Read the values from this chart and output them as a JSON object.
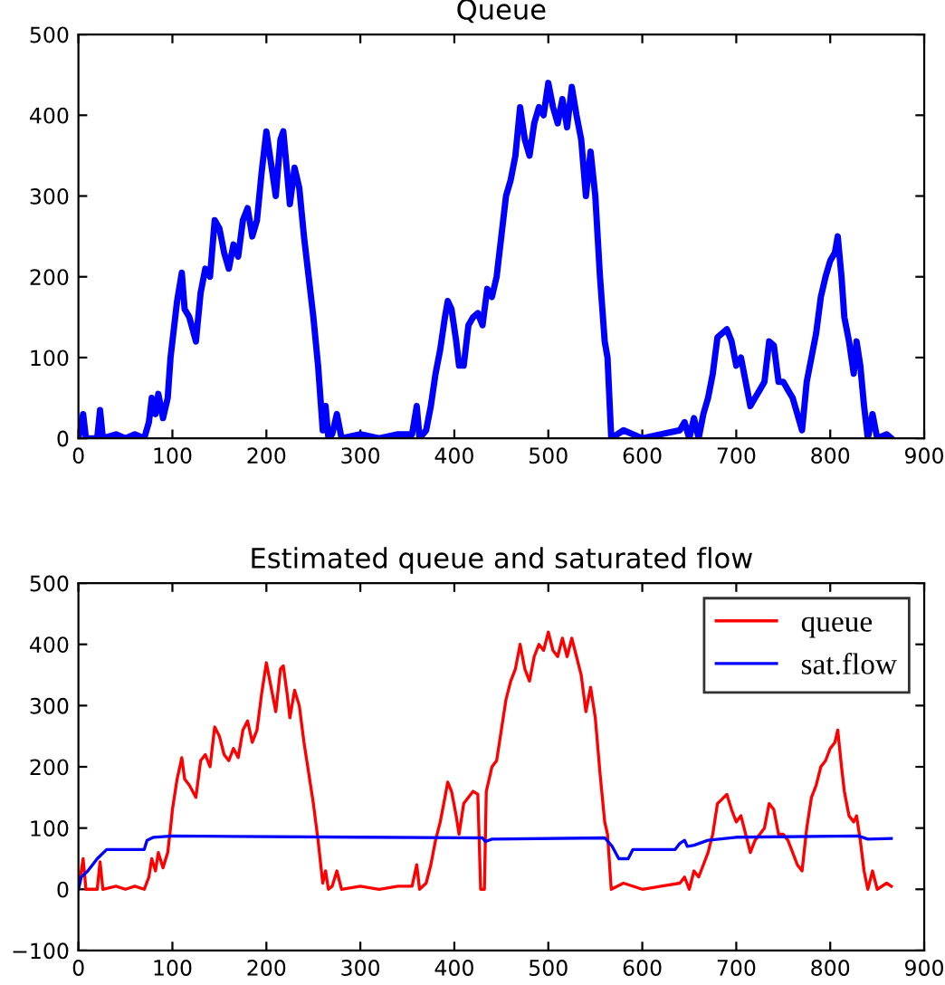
{
  "chart_data": [
    {
      "type": "line",
      "title": "Queue",
      "xlim": [
        0,
        900
      ],
      "xticks": [
        0,
        100,
        200,
        300,
        400,
        500,
        600,
        700,
        800,
        900
      ],
      "ylim": [
        0,
        500
      ],
      "yticks": [
        0,
        100,
        200,
        300,
        400,
        500
      ],
      "grid": false,
      "legend": false,
      "series": [
        {
          "color": "#0000ff",
          "x": [
            0,
            5,
            8,
            20,
            23,
            26,
            40,
            50,
            60,
            70,
            75,
            78,
            82,
            85,
            90,
            95,
            98,
            100,
            105,
            110,
            113,
            118,
            125,
            130,
            135,
            140,
            145,
            150,
            155,
            160,
            165,
            170,
            175,
            180,
            185,
            190,
            195,
            200,
            205,
            210,
            215,
            218,
            222,
            225,
            230,
            235,
            240,
            245,
            250,
            255,
            260,
            263,
            266,
            270,
            275,
            280,
            300,
            320,
            340,
            355,
            360,
            363,
            370,
            375,
            380,
            385,
            390,
            393,
            397,
            402,
            405,
            410,
            415,
            420,
            425,
            430,
            435,
            440,
            445,
            450,
            455,
            460,
            465,
            470,
            475,
            480,
            485,
            490,
            495,
            500,
            505,
            510,
            515,
            520,
            525,
            530,
            535,
            540,
            545,
            550,
            555,
            560,
            563,
            567,
            580,
            600,
            620,
            640,
            645,
            650,
            655,
            660,
            665,
            670,
            675,
            680,
            690,
            695,
            700,
            705,
            710,
            715,
            720,
            725,
            730,
            735,
            740,
            745,
            750,
            755,
            760,
            765,
            770,
            775,
            780,
            785,
            790,
            795,
            800,
            805,
            808,
            812,
            815,
            820,
            825,
            828,
            832,
            836,
            840,
            845,
            850,
            860,
            865
          ],
          "values": [
            0,
            30,
            0,
            0,
            35,
            0,
            5,
            0,
            5,
            0,
            20,
            50,
            30,
            55,
            25,
            50,
            100,
            120,
            170,
            205,
            160,
            150,
            120,
            180,
            210,
            200,
            270,
            260,
            230,
            210,
            240,
            225,
            270,
            285,
            250,
            270,
            330,
            380,
            340,
            300,
            370,
            380,
            330,
            290,
            335,
            310,
            250,
            200,
            150,
            90,
            10,
            40,
            0,
            5,
            30,
            0,
            5,
            0,
            5,
            5,
            40,
            0,
            10,
            40,
            80,
            110,
            150,
            170,
            160,
            120,
            90,
            90,
            140,
            150,
            155,
            140,
            185,
            175,
            200,
            250,
            300,
            320,
            350,
            410,
            370,
            350,
            390,
            410,
            400,
            440,
            410,
            390,
            420,
            385,
            435,
            400,
            370,
            300,
            355,
            300,
            200,
            120,
            100,
            0,
            10,
            0,
            5,
            10,
            20,
            0,
            25,
            0,
            30,
            50,
            80,
            125,
            135,
            120,
            90,
            100,
            70,
            40,
            50,
            60,
            70,
            120,
            115,
            70,
            70,
            60,
            50,
            30,
            10,
            70,
            100,
            130,
            175,
            200,
            220,
            230,
            250,
            200,
            150,
            120,
            80,
            120,
            90,
            40,
            0,
            30,
            0,
            5,
            0
          ]
        }
      ]
    },
    {
      "type": "line",
      "title": "Estimated queue and saturated flow",
      "xlim": [
        0,
        900
      ],
      "xticks": [
        0,
        100,
        200,
        300,
        400,
        500,
        600,
        700,
        800,
        900
      ],
      "ylim": [
        -100,
        500
      ],
      "yticks": [
        -100,
        0,
        100,
        200,
        300,
        400,
        500
      ],
      "grid": false,
      "legend": "top right",
      "series": [
        {
          "name": "queue",
          "color": "#ff0000",
          "x": [
            0,
            5,
            8,
            20,
            23,
            26,
            40,
            50,
            60,
            70,
            75,
            78,
            82,
            85,
            90,
            95,
            98,
            100,
            105,
            110,
            113,
            118,
            125,
            130,
            135,
            140,
            145,
            150,
            155,
            160,
            165,
            170,
            175,
            180,
            185,
            190,
            195,
            200,
            205,
            210,
            215,
            218,
            222,
            225,
            230,
            235,
            240,
            245,
            250,
            255,
            260,
            263,
            266,
            270,
            275,
            280,
            300,
            320,
            340,
            355,
            360,
            363,
            370,
            375,
            380,
            385,
            390,
            393,
            397,
            402,
            405,
            410,
            415,
            420,
            425,
            428,
            432,
            434,
            440,
            445,
            450,
            455,
            460,
            465,
            470,
            475,
            480,
            485,
            490,
            495,
            500,
            505,
            510,
            515,
            520,
            525,
            530,
            535,
            540,
            545,
            550,
            555,
            560,
            563,
            567,
            580,
            600,
            620,
            640,
            645,
            650,
            655,
            660,
            665,
            670,
            675,
            680,
            690,
            695,
            700,
            705,
            710,
            715,
            720,
            725,
            730,
            735,
            740,
            745,
            750,
            755,
            760,
            765,
            770,
            775,
            780,
            785,
            790,
            795,
            800,
            805,
            808,
            812,
            815,
            820,
            825,
            828,
            832,
            836,
            840,
            845,
            850,
            860,
            865
          ],
          "values": [
            0,
            50,
            0,
            0,
            45,
            0,
            5,
            0,
            5,
            0,
            20,
            50,
            30,
            60,
            35,
            60,
            100,
            130,
            180,
            215,
            180,
            170,
            150,
            210,
            220,
            200,
            265,
            250,
            220,
            210,
            230,
            215,
            260,
            275,
            240,
            260,
            320,
            370,
            330,
            290,
            360,
            365,
            320,
            280,
            325,
            300,
            240,
            190,
            140,
            80,
            10,
            30,
            0,
            5,
            30,
            0,
            5,
            0,
            5,
            5,
            40,
            0,
            10,
            40,
            80,
            110,
            150,
            175,
            160,
            120,
            90,
            140,
            150,
            160,
            155,
            0,
            0,
            160,
            200,
            210,
            260,
            310,
            340,
            360,
            400,
            360,
            340,
            380,
            400,
            390,
            420,
            390,
            380,
            410,
            380,
            410,
            380,
            350,
            290,
            330,
            280,
            190,
            110,
            90,
            0,
            10,
            0,
            5,
            10,
            20,
            0,
            30,
            20,
            40,
            60,
            90,
            140,
            155,
            130,
            110,
            120,
            90,
            60,
            80,
            90,
            100,
            140,
            130,
            90,
            90,
            80,
            60,
            40,
            30,
            100,
            150,
            170,
            200,
            210,
            230,
            240,
            260,
            200,
            160,
            120,
            110,
            120,
            80,
            30,
            0,
            30,
            0,
            10,
            5
          ]
        },
        {
          "name": "sat.flow",
          "color": "#0000ff",
          "x": [
            0,
            3,
            10,
            20,
            30,
            70,
            73,
            80,
            100,
            300,
            430,
            433,
            440,
            560,
            568,
            575,
            585,
            590,
            635,
            640,
            645,
            648,
            655,
            670,
            700,
            830,
            840,
            865
          ],
          "values": [
            0,
            20,
            30,
            50,
            65,
            65,
            80,
            85,
            87,
            85,
            84,
            78,
            82,
            84,
            70,
            50,
            50,
            65,
            65,
            75,
            80,
            70,
            72,
            80,
            85,
            87,
            82,
            83
          ]
        }
      ]
    }
  ]
}
